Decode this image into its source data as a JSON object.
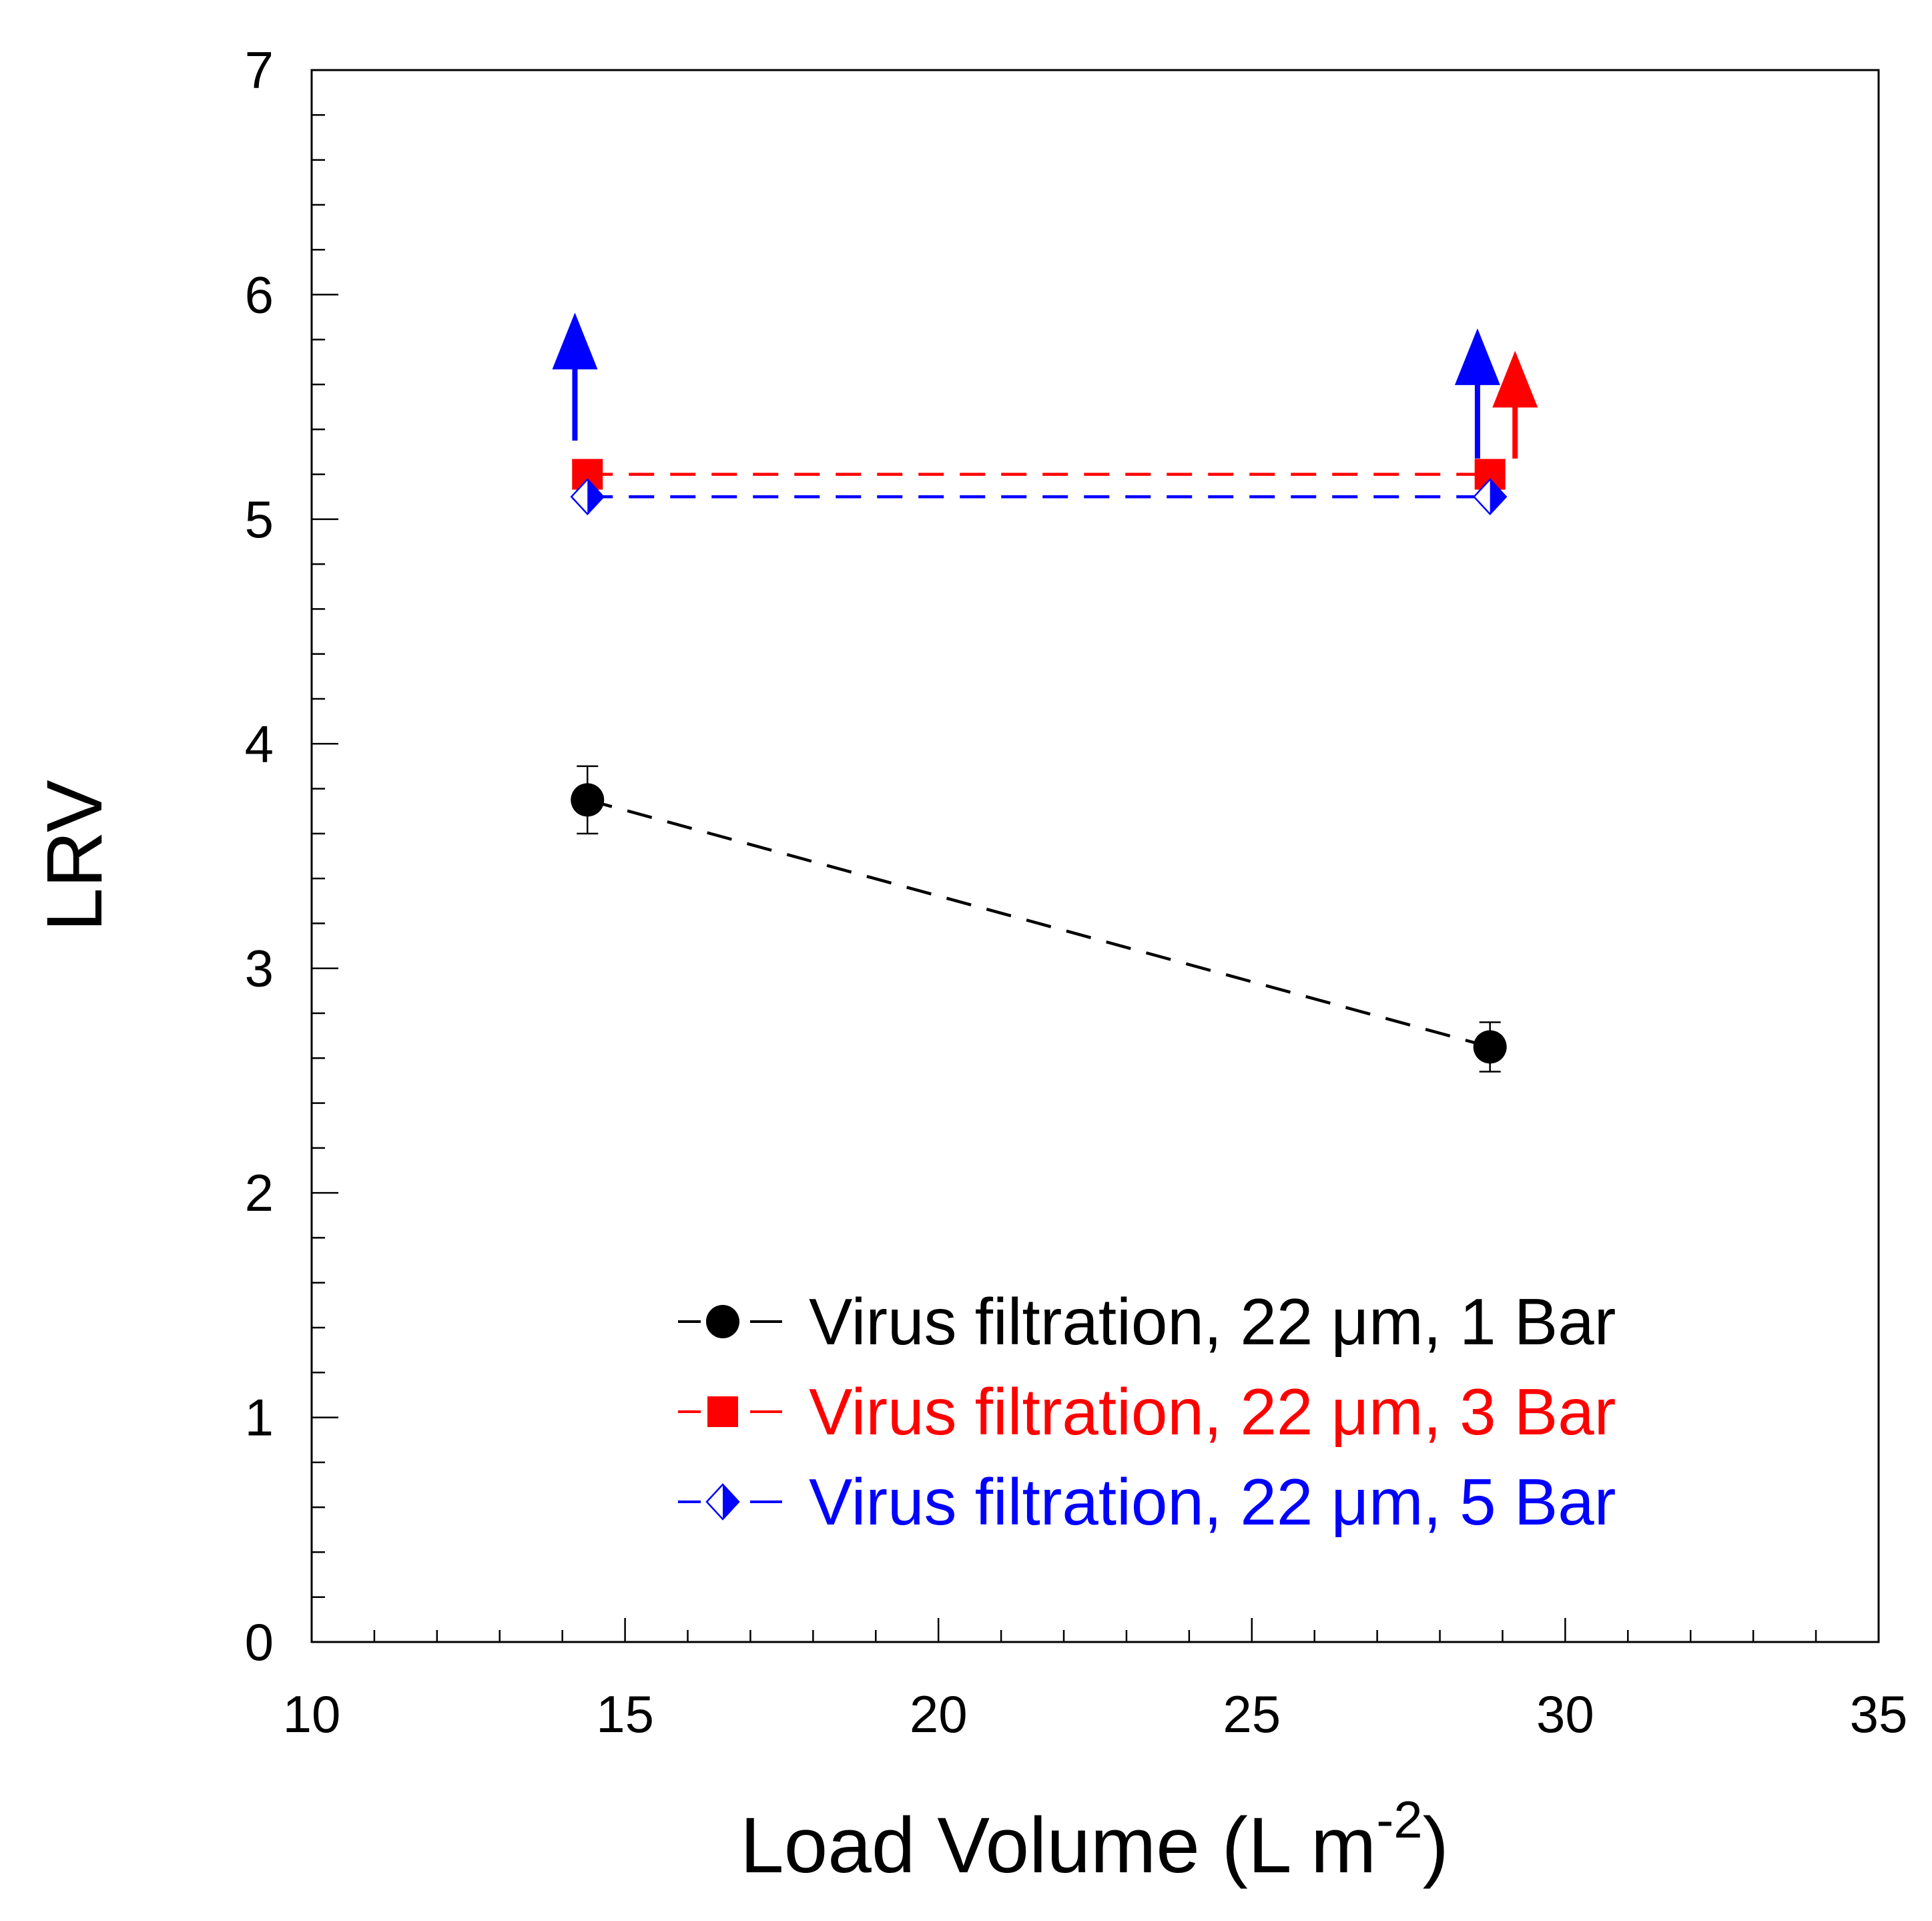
{
  "chart_data": {
    "type": "scatter",
    "title": "",
    "xlabel": "Load Volume (L m",
    "xlabel_superscript": "-2",
    "xlabel_suffix": ")",
    "ylabel": "LRV",
    "xlim": [
      10,
      35
    ],
    "ylim": [
      0,
      7
    ],
    "x_ticks": [
      10,
      15,
      20,
      25,
      30,
      35
    ],
    "x_tick_labels": [
      "10",
      "15",
      "20",
      "25",
      "30",
      "35"
    ],
    "y_ticks": [
      0,
      1,
      2,
      3,
      4,
      5,
      6,
      7
    ],
    "y_tick_labels": [
      "0",
      "1",
      "2",
      "3",
      "4",
      "5",
      "6",
      "7"
    ],
    "grid": false,
    "legend_position": "bottom-right",
    "series": [
      {
        "name": "Virus filtration, 22 μm, 1 Bar",
        "color": "#000000",
        "marker": "circle",
        "line": "dashed",
        "x": [
          14.4,
          28.8
        ],
        "y": [
          3.75,
          2.65
        ],
        "yerr": [
          0.15,
          0.11
        ],
        "lower_limit": false
      },
      {
        "name": "Virus filtration, 22 μm, 3 Bar",
        "color": "#ff0000",
        "marker": "square",
        "line": "dashed",
        "x": [
          14.4,
          28.8
        ],
        "y": [
          5.2,
          5.2
        ],
        "lower_limit": true,
        "arrow_points": [
          {
            "x": 29.2,
            "from": 5.27,
            "to": 5.75
          }
        ]
      },
      {
        "name": "Virus filtration, 22 μm, 5 Bar",
        "color": "#0000ff",
        "marker": "half-diamond",
        "line": "dashed",
        "x": [
          14.4,
          28.8
        ],
        "y": [
          5.1,
          5.1
        ],
        "lower_limit": true,
        "arrow_points": [
          {
            "x": 14.2,
            "from": 5.35,
            "to": 5.92
          },
          {
            "x": 28.6,
            "from": 5.27,
            "to": 5.85
          }
        ]
      }
    ]
  }
}
